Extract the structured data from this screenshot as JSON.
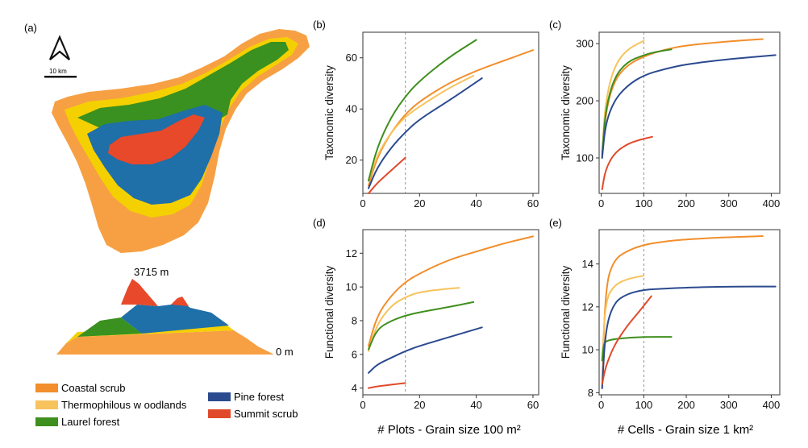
{
  "panel_labels": {
    "a": "(a)",
    "b": "(b)",
    "c": "(c)",
    "d": "(d)",
    "e": "(e)"
  },
  "map": {
    "scale_label": "10 km",
    "summit_label": "3715 m",
    "sea_level_label": "0 m",
    "north_arrow": "north-arrow-icon"
  },
  "colors": {
    "coastal": "#f28e2b",
    "thermo": "#f7c35c",
    "laurel": "#3f8f1e",
    "pine": "#2b4a8f",
    "summit": "#e04a2a",
    "coast_fill": "#f7a043",
    "thermo_fill": "#f4d000",
    "laurel_fill": "#3a9120",
    "pine_fill": "#1f6fa8",
    "summit_fill": "#e8492b"
  },
  "legend": [
    {
      "key": "coastal",
      "label": "Coastal scrub"
    },
    {
      "key": "thermo",
      "label": "Thermophilous w oodlands"
    },
    {
      "key": "laurel",
      "label": "Laurel forest"
    },
    {
      "key": "pine",
      "label": "Pine forest"
    },
    {
      "key": "summit",
      "label": "Summit scrub"
    }
  ],
  "x_axis_titles": {
    "plots": "# Plots - Grain size 100 m²",
    "cells": "# Cells - Grain size 1 km²"
  },
  "chart_data": [
    {
      "id": "b",
      "type": "line",
      "ylabel": "Taxonomic diversity",
      "xlabel": "",
      "xlim": [
        0,
        62
      ],
      "ylim": [
        7,
        70
      ],
      "xticks": [
        0,
        20,
        40,
        60
      ],
      "yticks": [
        20,
        40,
        60
      ],
      "vline": 15,
      "series": [
        {
          "key": "coastal",
          "x": [
            2,
            5,
            10,
            15,
            20,
            30,
            40,
            50,
            60
          ],
          "y": [
            10,
            21,
            31,
            38,
            43,
            50,
            55,
            59,
            63
          ]
        },
        {
          "key": "thermo",
          "x": [
            2,
            5,
            10,
            15,
            20,
            30,
            39
          ],
          "y": [
            12,
            22,
            31,
            37,
            41,
            48,
            53
          ]
        },
        {
          "key": "laurel",
          "x": [
            2,
            5,
            10,
            15,
            20,
            30,
            40
          ],
          "y": [
            12,
            25,
            37,
            45,
            51,
            60,
            67
          ]
        },
        {
          "key": "pine",
          "x": [
            2,
            5,
            10,
            15,
            20,
            30,
            42
          ],
          "y": [
            9,
            17,
            25,
            31,
            36,
            43,
            52
          ]
        },
        {
          "key": "summit",
          "x": [
            2,
            5,
            10,
            15
          ],
          "y": [
            7,
            11,
            16,
            21
          ]
        }
      ]
    },
    {
      "id": "c",
      "type": "line",
      "ylabel": "Taxonomic diversity",
      "xlabel": "",
      "xlim": [
        -5,
        420
      ],
      "ylim": [
        38,
        320
      ],
      "xticks": [
        0,
        100,
        200,
        300,
        400
      ],
      "yticks": [
        100,
        200,
        300
      ],
      "vline": 100,
      "series": [
        {
          "key": "coastal",
          "x": [
            2,
            10,
            30,
            60,
            100,
            150,
            200,
            300,
            380
          ],
          "y": [
            100,
            180,
            235,
            262,
            278,
            290,
            297,
            304,
            308
          ]
        },
        {
          "key": "thermo",
          "x": [
            2,
            10,
            30,
            60,
            100
          ],
          "y": [
            110,
            200,
            260,
            290,
            305
          ]
        },
        {
          "key": "laurel",
          "x": [
            2,
            10,
            30,
            60,
            100,
            130,
            165
          ],
          "y": [
            105,
            185,
            240,
            268,
            280,
            286,
            290
          ]
        },
        {
          "key": "pine",
          "x": [
            2,
            10,
            30,
            60,
            100,
            150,
            200,
            300,
            410
          ],
          "y": [
            100,
            160,
            200,
            226,
            245,
            256,
            264,
            273,
            280
          ]
        },
        {
          "key": "summit",
          "x": [
            2,
            10,
            30,
            60,
            90,
            120
          ],
          "y": [
            45,
            80,
            108,
            124,
            132,
            137
          ]
        }
      ]
    },
    {
      "id": "d",
      "type": "line",
      "ylabel": "Functional diversity",
      "xlabel": "",
      "xlim": [
        0,
        62
      ],
      "ylim": [
        3.6,
        13.4
      ],
      "xticks": [
        0,
        20,
        40,
        60
      ],
      "yticks": [
        4,
        6,
        8,
        10,
        12
      ],
      "vline": 15,
      "series": [
        {
          "key": "coastal",
          "x": [
            2,
            5,
            10,
            15,
            20,
            30,
            40,
            50,
            60
          ],
          "y": [
            6.5,
            8.3,
            9.5,
            10.3,
            10.8,
            11.6,
            12.1,
            12.6,
            13.0
          ]
        },
        {
          "key": "thermo",
          "x": [
            2,
            5,
            10,
            15,
            20,
            30,
            34
          ],
          "y": [
            6.2,
            7.8,
            8.9,
            9.4,
            9.7,
            9.9,
            9.95
          ]
        },
        {
          "key": "laurel",
          "x": [
            2,
            5,
            10,
            15,
            20,
            30,
            39
          ],
          "y": [
            6.3,
            7.5,
            8.0,
            8.3,
            8.5,
            8.8,
            9.1
          ]
        },
        {
          "key": "pine",
          "x": [
            2,
            5,
            10,
            15,
            20,
            30,
            42
          ],
          "y": [
            4.9,
            5.4,
            5.8,
            6.2,
            6.5,
            7.0,
            7.6
          ]
        },
        {
          "key": "summit",
          "x": [
            2,
            5,
            10,
            15
          ],
          "y": [
            4.0,
            4.1,
            4.2,
            4.3
          ]
        }
      ]
    },
    {
      "id": "e",
      "type": "line",
      "ylabel": "Functional diversity",
      "xlabel": "",
      "xlim": [
        -5,
        420
      ],
      "ylim": [
        7.9,
        15.6
      ],
      "xticks": [
        0,
        100,
        200,
        300,
        400
      ],
      "yticks": [
        8,
        10,
        12,
        14
      ],
      "vline": 100,
      "series": [
        {
          "key": "coastal",
          "x": [
            2,
            10,
            30,
            60,
            100,
            150,
            200,
            300,
            380
          ],
          "y": [
            8.3,
            13.0,
            14.2,
            14.6,
            14.9,
            15.05,
            15.15,
            15.25,
            15.3
          ]
        },
        {
          "key": "thermo",
          "x": [
            2,
            10,
            30,
            60,
            100
          ],
          "y": [
            9.5,
            12.3,
            13.0,
            13.3,
            13.45
          ]
        },
        {
          "key": "laurel",
          "x": [
            2,
            5,
            10,
            30,
            60,
            100,
            165
          ],
          "y": [
            9.5,
            10.2,
            10.4,
            10.5,
            10.55,
            10.6,
            10.6
          ]
        },
        {
          "key": "pine",
          "x": [
            2,
            10,
            30,
            60,
            100,
            150,
            200,
            300,
            410
          ],
          "y": [
            8.2,
            11.0,
            12.2,
            12.6,
            12.8,
            12.85,
            12.9,
            12.95,
            12.95
          ]
        },
        {
          "key": "summit",
          "x": [
            2,
            10,
            30,
            60,
            90,
            118
          ],
          "y": [
            8.4,
            9.2,
            10.2,
            11.1,
            11.8,
            12.5
          ]
        }
      ]
    }
  ]
}
